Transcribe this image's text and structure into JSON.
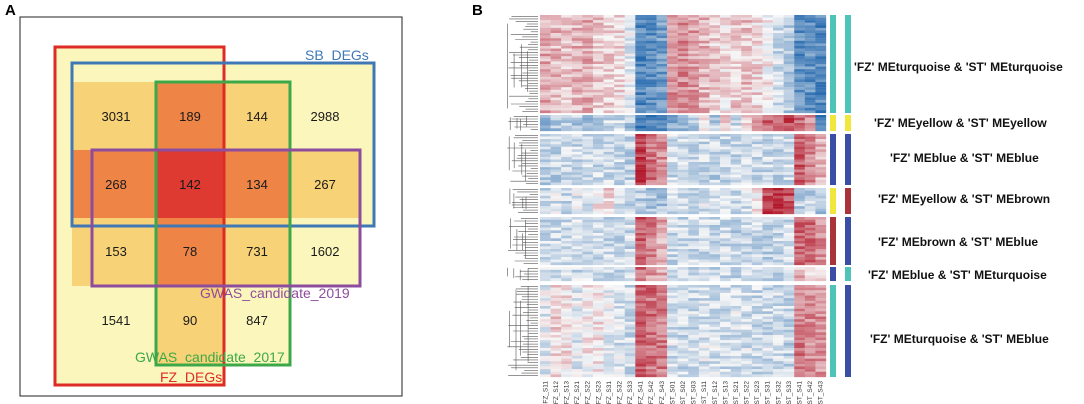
{
  "panel_a": {
    "label": "A",
    "sets": [
      {
        "name": "SB_DEGs",
        "color": "#3f78b4"
      },
      {
        "name": "FZ_DEGs",
        "color": "#dd2b26"
      },
      {
        "name": "GWAS_candidate_2017",
        "color": "#3ca84a"
      },
      {
        "name": "GWAS_candidate_2019",
        "color": "#8e4c9e"
      }
    ],
    "counts": [
      [
        "3031",
        "189",
        "144",
        "2988"
      ],
      [
        "268",
        "142",
        "134",
        "267"
      ],
      [
        "153",
        "78",
        "731",
        "1602"
      ],
      [
        "1541",
        "90",
        "847",
        ""
      ]
    ],
    "colors": {
      "background": "#fbf7bc",
      "level1": "#f8d277",
      "level2": "#f3a55a",
      "level3": "#ee8547",
      "level4": "#de3a32"
    }
  },
  "panel_b": {
    "label": "B",
    "columns": [
      "FZ_S11",
      "FZ_S12",
      "FZ_S13",
      "FZ_S21",
      "FZ_S22",
      "FZ_S23",
      "FZ_S31",
      "FZ_S32",
      "FZ_S33",
      "FZ_S41",
      "FZ_S42",
      "FZ_S43",
      "ST_S01",
      "ST_S02",
      "ST_S03",
      "ST_S11",
      "ST_S12",
      "ST_S13",
      "ST_S21",
      "ST_S22",
      "ST_S23",
      "ST_S31",
      "ST_S32",
      "ST_S33",
      "ST_S41",
      "ST_S42",
      "ST_S43"
    ],
    "modules": [
      {
        "label": "'FZ' MEturquoise & 'ST' MEturquoise",
        "fz_color": "#4ec4b8",
        "st_color": "#4ec4b8"
      },
      {
        "label": "'FZ' MEyellow & 'ST' MEyellow",
        "fz_color": "#f1e63c",
        "st_color": "#f1e63c"
      },
      {
        "label": "'FZ' MEblue & 'ST' MEblue",
        "fz_color": "#3b4ea6",
        "st_color": "#3b4ea6"
      },
      {
        "label": "'FZ' MEyellow & 'ST' MEbrown",
        "fz_color": "#f1e63c",
        "st_color": "#a8343a"
      },
      {
        "label": "'FZ' MEbrown & 'ST' MEblue",
        "fz_color": "#a8343a",
        "st_color": "#3b4ea6"
      },
      {
        "label": "'FZ' MEblue & 'ST' MEturquoise",
        "fz_color": "#3b4ea6",
        "st_color": "#4ec4b8"
      },
      {
        "label": "'FZ' MEturquoise & 'ST' MEblue",
        "fz_color": "#4ec4b8",
        "st_color": "#3b4ea6"
      }
    ]
  }
}
